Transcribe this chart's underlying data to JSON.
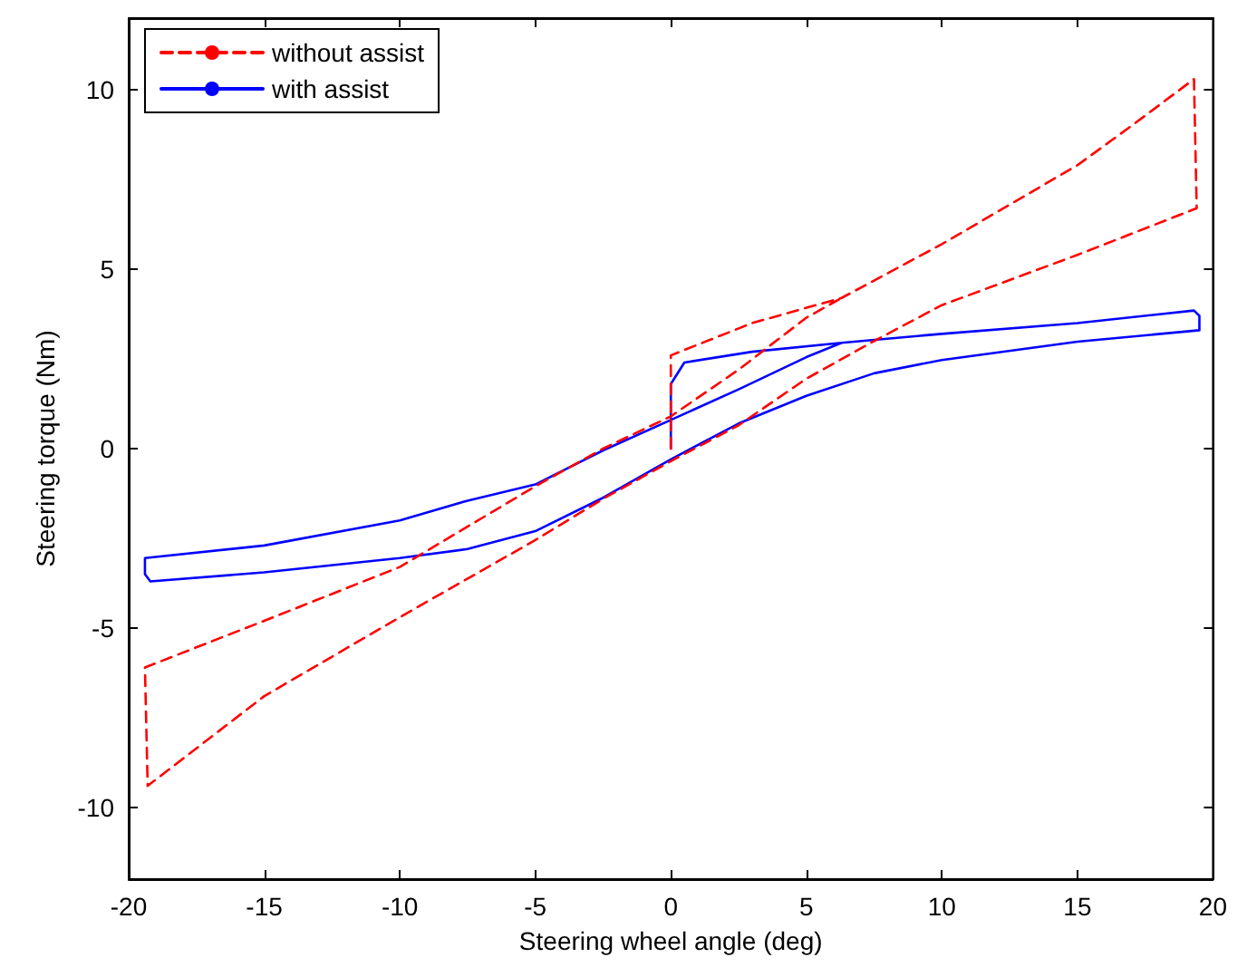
{
  "chart_data": {
    "type": "line",
    "xlabel": "Steering wheel angle (deg)",
    "ylabel": "Steering torque (Nm)",
    "xlim": [
      -20,
      20
    ],
    "xticks": [
      -20,
      -15,
      -10,
      -5,
      0,
      5,
      10,
      15,
      20
    ],
    "ylim": [
      -12,
      12
    ],
    "yticks": [
      -10,
      -5,
      0,
      5,
      10
    ],
    "grid": false,
    "legend": "top left",
    "marker": "none",
    "series": [
      {
        "name": "without assist",
        "color": "#ff0000",
        "line_style": "dashed",
        "x": [
          0,
          0,
          3,
          6.3,
          10,
          15,
          17,
          19.3,
          19.4,
          15,
          10,
          7.5,
          5,
          2.5,
          0,
          -2.5,
          -5,
          -10,
          -15,
          -19.3,
          -19.4,
          -15,
          -10,
          -5,
          -2.5,
          0,
          2.5,
          5,
          6.3
        ],
        "values": [
          0,
          2.6,
          3.5,
          4.2,
          5.7,
          7.9,
          9,
          10.3,
          6.7,
          5.4,
          4,
          3,
          1.95,
          0.65,
          -0.35,
          -1.4,
          -2.55,
          -4.7,
          -6.9,
          -9.4,
          -6.1,
          -4.8,
          -3.3,
          -1.05,
          0,
          0.9,
          2.2,
          3.65,
          4.2
        ]
      },
      {
        "name": "with assist",
        "color": "#0000ff",
        "line_style": "solid",
        "x": [
          0,
          0,
          0.5,
          3,
          6.3,
          10,
          15,
          19.3,
          19.5,
          19.5,
          15,
          10,
          7.5,
          5,
          2.5,
          0,
          -2.5,
          -5,
          -7.5,
          -10,
          -15,
          -19.2,
          -19.4,
          -19.4,
          -15,
          -10,
          -7.5,
          -5,
          -2.5,
          0,
          2.5,
          5,
          6.3
        ],
        "values": [
          0,
          1.8,
          2.4,
          2.7,
          2.95,
          3.2,
          3.5,
          3.85,
          3.7,
          3.3,
          2.98,
          2.47,
          2.1,
          1.47,
          0.7,
          -0.3,
          -1.37,
          -2.3,
          -2.8,
          -3.05,
          -3.45,
          -3.7,
          -3.5,
          -3.05,
          -2.7,
          -2,
          -1.45,
          -1,
          -0.05,
          0.8,
          1.65,
          2.55,
          2.95
        ]
      }
    ]
  }
}
